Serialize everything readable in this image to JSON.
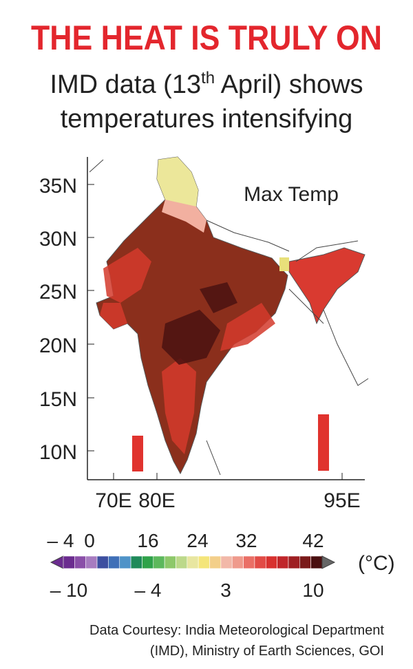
{
  "header": {
    "title": "THE HEAT IS TRULY ON",
    "subtitle": {
      "line1": [
        "IMD data (13",
        "th",
        " April) shows"
      ],
      "line2": "temperatures intensifying"
    }
  },
  "map": {
    "label": "Max Temp",
    "lat_labels": [
      "35N",
      "30N",
      "25N",
      "20N",
      "15N",
      "10N"
    ],
    "lon_labels": [
      "70E",
      "80E",
      "95E"
    ]
  },
  "legend": {
    "top_labels": [
      "– 4",
      "0",
      "16",
      "24",
      "32",
      "42"
    ],
    "bottom_labels": [
      "– 10",
      "– 4",
      "3",
      "10"
    ],
    "unit": "(°C)",
    "colors": [
      "#6b2c8f",
      "#8a4fa8",
      "#a77cc0",
      "#3d4fa0",
      "#3f6fb7",
      "#4f93c8",
      "#1f8a5a",
      "#2fa24a",
      "#5cb85c",
      "#8dc86a",
      "#bcd98a",
      "#e8e6a0",
      "#f4e57a",
      "#f3cf8a",
      "#f2b8a8",
      "#ef9a8c",
      "#ea6f66",
      "#e24b46",
      "#d8312f",
      "#c0262a",
      "#9e1f22",
      "#7a1a1a",
      "#4a0f10"
    ]
  },
  "footer": {
    "lines": [
      "Data Courtesy: India Meteorological Department",
      "(IMD), Ministry of Earth Sciences, GOI"
    ]
  }
}
